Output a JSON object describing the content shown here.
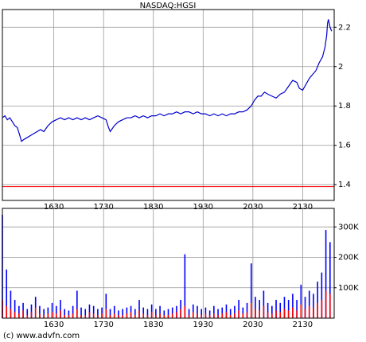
{
  "chart_data": [
    {
      "type": "line",
      "title": "NASDAQ:HGSI",
      "x": [
        0,
        3,
        6,
        9,
        12,
        15,
        18,
        21,
        23,
        26,
        30,
        34,
        38,
        42,
        46,
        50,
        55,
        60,
        65,
        70,
        75,
        80,
        85,
        90,
        95,
        100,
        105,
        110,
        115,
        120,
        125,
        128,
        130,
        135,
        140,
        145,
        150,
        155,
        160,
        165,
        170,
        175,
        180,
        185,
        190,
        195,
        200,
        205,
        210,
        215,
        220,
        225,
        230,
        235,
        240,
        245,
        250,
        255,
        260,
        265,
        270,
        275,
        280,
        285,
        290,
        295,
        300,
        304,
        308,
        312,
        316,
        320,
        325,
        330,
        335,
        340,
        345,
        350,
        355,
        358,
        362,
        366,
        370,
        374,
        378,
        382,
        386,
        389,
        391,
        392,
        393,
        395,
        397
      ],
      "series": [
        {
          "color": "#0000cc",
          "values": [
            1.74,
            1.75,
            1.73,
            1.74,
            1.72,
            1.7,
            1.69,
            1.65,
            1.62,
            1.63,
            1.64,
            1.65,
            1.66,
            1.67,
            1.68,
            1.67,
            1.7,
            1.72,
            1.73,
            1.74,
            1.73,
            1.74,
            1.73,
            1.74,
            1.73,
            1.74,
            1.73,
            1.74,
            1.75,
            1.74,
            1.73,
            1.69,
            1.67,
            1.7,
            1.72,
            1.73,
            1.74,
            1.74,
            1.75,
            1.74,
            1.75,
            1.74,
            1.75,
            1.75,
            1.76,
            1.75,
            1.76,
            1.76,
            1.77,
            1.76,
            1.77,
            1.77,
            1.76,
            1.77,
            1.76,
            1.76,
            1.75,
            1.76,
            1.75,
            1.76,
            1.75,
            1.76,
            1.76,
            1.77,
            1.77,
            1.78,
            1.8,
            1.83,
            1.85,
            1.85,
            1.87,
            1.86,
            1.85,
            1.84,
            1.86,
            1.87,
            1.9,
            1.93,
            1.92,
            1.89,
            1.88,
            1.91,
            1.94,
            1.96,
            1.98,
            2.02,
            2.05,
            2.1,
            2.16,
            2.22,
            2.24,
            2.2,
            2.18
          ]
        }
      ],
      "reference_line": {
        "value": 1.39,
        "color": "#ff0000"
      },
      "xlim": [
        0,
        400
      ],
      "xticks": [
        {
          "value": 62,
          "label": "1630"
        },
        {
          "value": 122,
          "label": "1730"
        },
        {
          "value": 182,
          "label": "1830"
        },
        {
          "value": 242,
          "label": "1930"
        },
        {
          "value": 302,
          "label": "2030"
        },
        {
          "value": 362,
          "label": "2130"
        }
      ],
      "ylim": [
        1.32,
        2.29
      ],
      "yticks": [
        1.4,
        1.6,
        1.8,
        2,
        2.2
      ],
      "grid": true
    },
    {
      "type": "bar",
      "x": [
        0,
        5,
        10,
        15,
        20,
        25,
        30,
        35,
        40,
        45,
        50,
        55,
        60,
        65,
        70,
        75,
        80,
        85,
        90,
        95,
        100,
        105,
        110,
        115,
        120,
        125,
        130,
        135,
        140,
        145,
        150,
        155,
        160,
        165,
        170,
        175,
        180,
        185,
        190,
        195,
        200,
        205,
        210,
        215,
        220,
        225,
        230,
        235,
        240,
        245,
        250,
        255,
        260,
        265,
        270,
        275,
        280,
        285,
        290,
        295,
        300,
        305,
        310,
        315,
        320,
        325,
        330,
        335,
        340,
        345,
        350,
        355,
        360,
        365,
        370,
        375,
        380,
        385,
        390,
        395
      ],
      "series": [
        {
          "color": "#0000ff",
          "values": [
            340000,
            160000,
            90000,
            60000,
            40000,
            50000,
            30000,
            45000,
            70000,
            40000,
            30000,
            35000,
            50000,
            40000,
            60000,
            30000,
            25000,
            40000,
            90000,
            35000,
            30000,
            45000,
            40000,
            30000,
            35000,
            80000,
            30000,
            40000,
            25000,
            30000,
            35000,
            40000,
            30000,
            60000,
            35000,
            30000,
            45000,
            30000,
            40000,
            25000,
            30000,
            35000,
            40000,
            60000,
            210000,
            30000,
            45000,
            40000,
            30000,
            35000,
            25000,
            40000,
            30000,
            35000,
            45000,
            30000,
            40000,
            60000,
            35000,
            50000,
            180000,
            70000,
            60000,
            90000,
            50000,
            40000,
            60000,
            50000,
            70000,
            60000,
            80000,
            60000,
            110000,
            70000,
            90000,
            80000,
            120000,
            150000,
            290000,
            250000
          ]
        },
        {
          "color": "#ff0000",
          "values": [
            60000,
            40000,
            30000,
            20000,
            15000,
            25000,
            10000,
            20000,
            35000,
            15000,
            10000,
            15000,
            20000,
            15000,
            25000,
            10000,
            10000,
            15000,
            30000,
            10000,
            10000,
            20000,
            15000,
            10000,
            15000,
            30000,
            10000,
            15000,
            10000,
            10000,
            15000,
            20000,
            10000,
            25000,
            15000,
            10000,
            20000,
            10000,
            15000,
            10000,
            10000,
            15000,
            20000,
            30000,
            40000,
            10000,
            20000,
            15000,
            10000,
            15000,
            10000,
            15000,
            10000,
            15000,
            20000,
            10000,
            15000,
            25000,
            15000,
            20000,
            50000,
            30000,
            25000,
            40000,
            20000,
            15000,
            25000,
            20000,
            30000,
            25000,
            35000,
            25000,
            45000,
            30000,
            40000,
            35000,
            50000,
            60000,
            90000,
            80000
          ]
        }
      ],
      "xlim": [
        0,
        400
      ],
      "xticks": [
        {
          "value": 62,
          "label": "1630"
        },
        {
          "value": 122,
          "label": "1730"
        },
        {
          "value": 182,
          "label": "1830"
        },
        {
          "value": 242,
          "label": "1930"
        },
        {
          "value": 302,
          "label": "2030"
        },
        {
          "value": 362,
          "label": "2130"
        }
      ],
      "ylim": [
        0,
        361000
      ],
      "yticks": [
        {
          "value": 100000,
          "label": "100K"
        },
        {
          "value": 200000,
          "label": "200K"
        },
        {
          "value": 300000,
          "label": "300K"
        }
      ],
      "grid": true
    }
  ],
  "footer": "(c) www.advfn.com"
}
